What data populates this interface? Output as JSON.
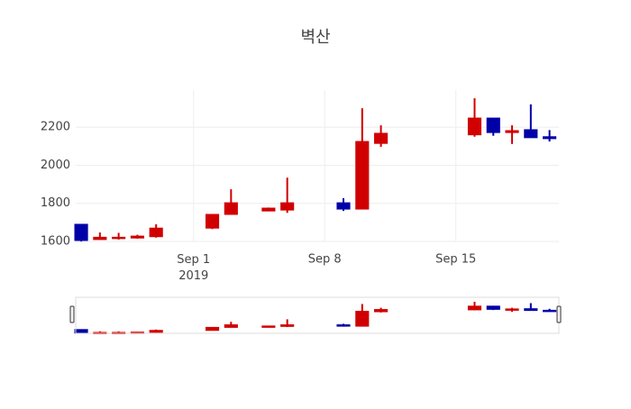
{
  "chart_data": {
    "type": "candlestick",
    "title": "벽산",
    "x": [
      "2019-08-26",
      "2019-08-27",
      "2019-08-28",
      "2019-08-29",
      "2019-08-30",
      "2019-09-02",
      "2019-09-03",
      "2019-09-05",
      "2019-09-06",
      "2019-09-09",
      "2019-09-10",
      "2019-09-11",
      "2019-09-16",
      "2019-09-17",
      "2019-09-18",
      "2019-09-19",
      "2019-09-20"
    ],
    "open": [
      1690,
      1610,
      1615,
      1618,
      1625,
      1670,
      1742,
      1760,
      1765,
      1803,
      1770,
      2115,
      2160,
      2248,
      2172,
      2187,
      2150
    ],
    "high": [
      1690,
      1647,
      1645,
      1635,
      1690,
      1742,
      1874,
      1778,
      1935,
      1827,
      2300,
      2210,
      2352,
      2248,
      2210,
      2320,
      2185
    ],
    "low": [
      1600,
      1610,
      1610,
      1615,
      1620,
      1665,
      1740,
      1760,
      1750,
      1760,
      1770,
      2097,
      2150,
      2155,
      2112,
      2145,
      2125
    ],
    "close": [
      1605,
      1622,
      1622,
      1628,
      1670,
      1742,
      1803,
      1775,
      1803,
      1770,
      2125,
      2168,
      2248,
      2172,
      2182,
      2145,
      2140
    ],
    "increasing_color": "#d10000",
    "decreasing_color": "#0000a8",
    "xlim": [
      "2019-08-25T17:00",
      "2019-09-20T12:00"
    ],
    "xticks": [
      {
        "value": "2019-09-01",
        "label": "Sep 1\n2019"
      },
      {
        "value": "2019-09-08",
        "label": "Sep 8"
      },
      {
        "value": "2019-09-15",
        "label": "Sep 15"
      }
    ],
    "ylim": [
      1600,
      2395
    ],
    "yticks": [
      1600,
      1800,
      2000,
      2200
    ],
    "grid": true,
    "range_slider": true
  }
}
